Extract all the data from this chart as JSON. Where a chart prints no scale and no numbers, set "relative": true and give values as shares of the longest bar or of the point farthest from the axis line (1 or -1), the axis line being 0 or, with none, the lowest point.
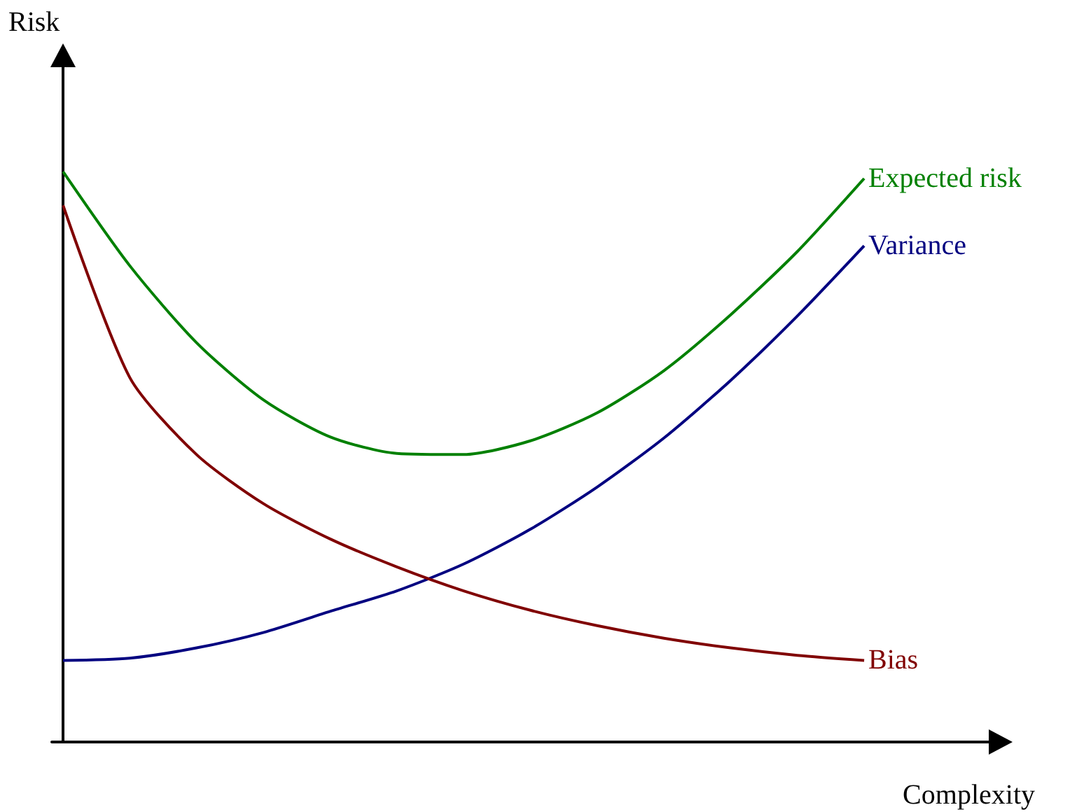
{
  "chart_data": {
    "type": "line",
    "relative": true,
    "xlabel": "Complexity",
    "ylabel": "Risk",
    "categories": [
      null,
      null,
      null,
      null,
      null,
      null,
      null,
      null,
      null,
      null,
      null,
      null,
      null
    ],
    "series": [
      {
        "name": "Expected risk",
        "color": "#008000",
        "values": [
          1.0,
          0.835,
          0.7,
          0.6,
          0.535,
          0.506,
          0.504,
          0.528,
          0.577,
          0.651,
          0.749,
          0.86,
          0.988
        ]
      },
      {
        "name": "Variance",
        "color": "#000080",
        "values": [
          0.143,
          0.147,
          0.165,
          0.192,
          0.229,
          0.265,
          0.312,
          0.373,
          0.447,
          0.533,
          0.634,
          0.747,
          0.87
        ]
      },
      {
        "name": "Bias",
        "color": "#800000",
        "values": [
          0.941,
          0.639,
          0.504,
          0.418,
          0.356,
          0.307,
          0.265,
          0.231,
          0.204,
          0.182,
          0.165,
          0.152,
          0.143
        ]
      }
    ]
  }
}
